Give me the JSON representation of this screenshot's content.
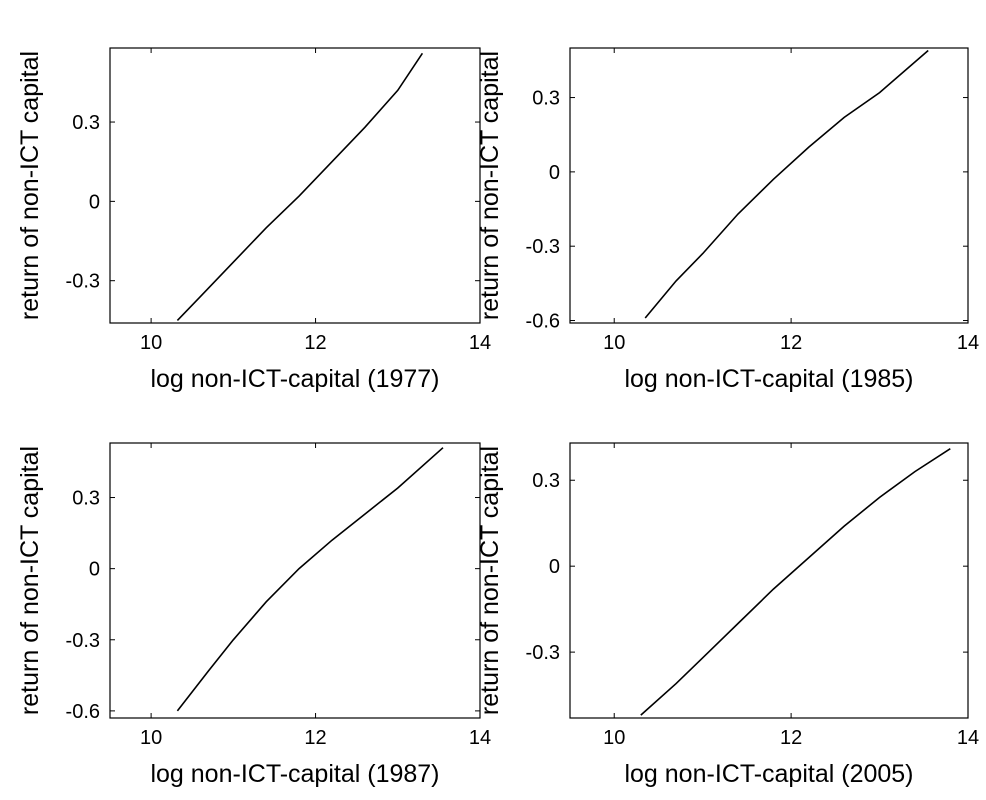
{
  "chart_data": [
    {
      "type": "line",
      "xlabel": "log non-ICT-capital (1977)",
      "ylabel": "return of non-ICT capital",
      "xlim": [
        9.5,
        14
      ],
      "ylim": [
        -0.46,
        0.58
      ],
      "xticks": [
        10,
        12,
        14
      ],
      "xtick_labels": [
        "10",
        "12",
        "14"
      ],
      "yticks": [
        -0.3,
        0,
        0.3
      ],
      "ytick_labels": [
        "-0.3",
        "0",
        "0.3"
      ],
      "grid": false,
      "series": [
        {
          "x": [
            10.32,
            10.6,
            11.0,
            11.4,
            11.8,
            12.2,
            12.6,
            13.0,
            13.3
          ],
          "y": [
            -0.45,
            -0.36,
            -0.23,
            -0.1,
            0.02,
            0.15,
            0.28,
            0.42,
            0.56
          ]
        }
      ]
    },
    {
      "type": "line",
      "xlabel": "log non-ICT-capital (1985)",
      "ylabel": "return of non-ICT capital",
      "xlim": [
        9.5,
        14
      ],
      "ylim": [
        -0.61,
        0.5
      ],
      "xticks": [
        10,
        12,
        14
      ],
      "xtick_labels": [
        "10",
        "12",
        "14"
      ],
      "yticks": [
        -0.6,
        -0.3,
        0,
        0.3
      ],
      "ytick_labels": [
        "-0.6",
        "-0.3",
        "0",
        "0.3"
      ],
      "grid": false,
      "series": [
        {
          "x": [
            10.35,
            10.7,
            11.0,
            11.4,
            11.8,
            12.2,
            12.6,
            13.0,
            13.55
          ],
          "y": [
            -0.59,
            -0.44,
            -0.33,
            -0.17,
            -0.03,
            0.1,
            0.22,
            0.32,
            0.49
          ]
        }
      ]
    },
    {
      "type": "line",
      "xlabel": "log non-ICT-capital (1987)",
      "ylabel": "return of non-ICT capital",
      "xlim": [
        9.5,
        14
      ],
      "ylim": [
        -0.63,
        0.53
      ],
      "xticks": [
        10,
        12,
        14
      ],
      "xtick_labels": [
        "10",
        "12",
        "14"
      ],
      "yticks": [
        -0.6,
        -0.3,
        0,
        0.3
      ],
      "ytick_labels": [
        "-0.6",
        "-0.3",
        "0",
        "0.3"
      ],
      "grid": false,
      "series": [
        {
          "x": [
            10.32,
            10.7,
            11.0,
            11.4,
            11.8,
            12.2,
            12.6,
            13.0,
            13.55
          ],
          "y": [
            -0.6,
            -0.43,
            -0.3,
            -0.14,
            0.0,
            0.12,
            0.23,
            0.34,
            0.51
          ]
        }
      ]
    },
    {
      "type": "line",
      "xlabel": "log non-ICT-capital (2005)",
      "ylabel": "return of non-ICT capital",
      "xlim": [
        9.5,
        14
      ],
      "ylim": [
        -0.53,
        0.43
      ],
      "xticks": [
        10,
        12,
        14
      ],
      "xtick_labels": [
        "10",
        "12",
        "14"
      ],
      "yticks": [
        -0.3,
        0,
        0.3
      ],
      "ytick_labels": [
        "-0.3",
        "0",
        "0.3"
      ],
      "grid": false,
      "series": [
        {
          "x": [
            10.3,
            10.7,
            11.0,
            11.4,
            11.8,
            12.2,
            12.6,
            13.0,
            13.4,
            13.8
          ],
          "y": [
            -0.52,
            -0.41,
            -0.32,
            -0.2,
            -0.08,
            0.03,
            0.14,
            0.24,
            0.33,
            0.41
          ]
        }
      ]
    }
  ]
}
